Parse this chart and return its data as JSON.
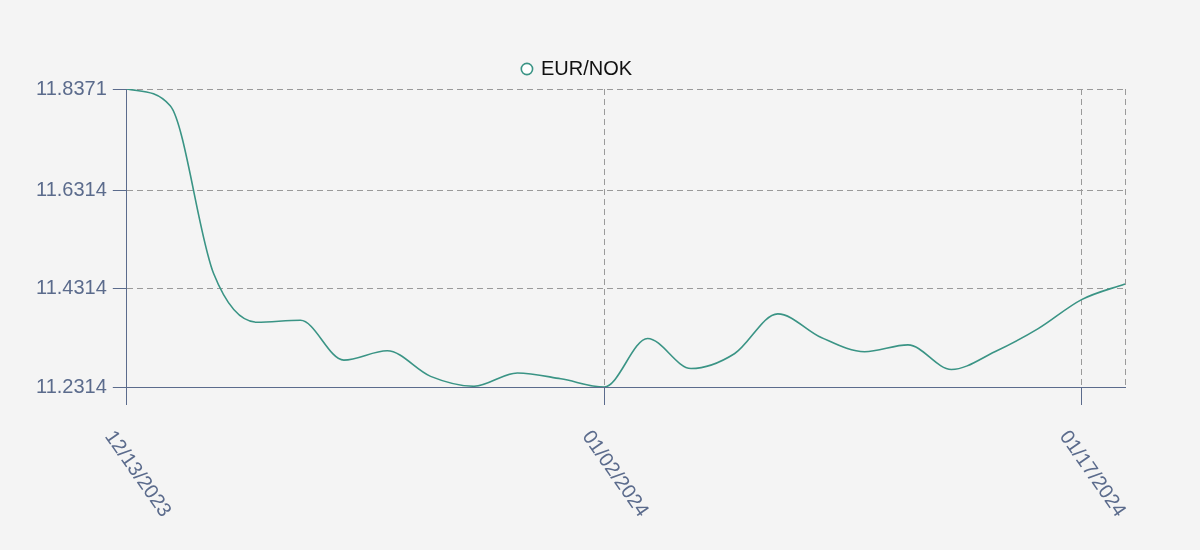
{
  "chart_data": {
    "type": "line",
    "categories": [
      "12/13/2023",
      null,
      null,
      null,
      null,
      null,
      null,
      null,
      null,
      null,
      null,
      "01/02/2024",
      null,
      null,
      null,
      null,
      null,
      null,
      null,
      null,
      null,
      null,
      "01/17/2024",
      null
    ],
    "series": [
      {
        "name": "EUR/NOK",
        "color": "#3a9485",
        "values": [
          11.8371,
          11.803,
          11.462,
          11.363,
          11.367,
          11.286,
          11.305,
          11.253,
          11.233,
          11.26,
          11.248,
          11.2314,
          11.33,
          11.269,
          11.299,
          11.38,
          11.332,
          11.303,
          11.317,
          11.267,
          11.303,
          11.35,
          11.409,
          11.441
        ]
      }
    ],
    "ylim": [
      11.2314,
      11.8371
    ],
    "yticks": [
      11.2314,
      11.4314,
      11.6314,
      11.8371
    ],
    "grid": true,
    "legend": "top",
    "marker": "none",
    "line_style": "solid"
  }
}
